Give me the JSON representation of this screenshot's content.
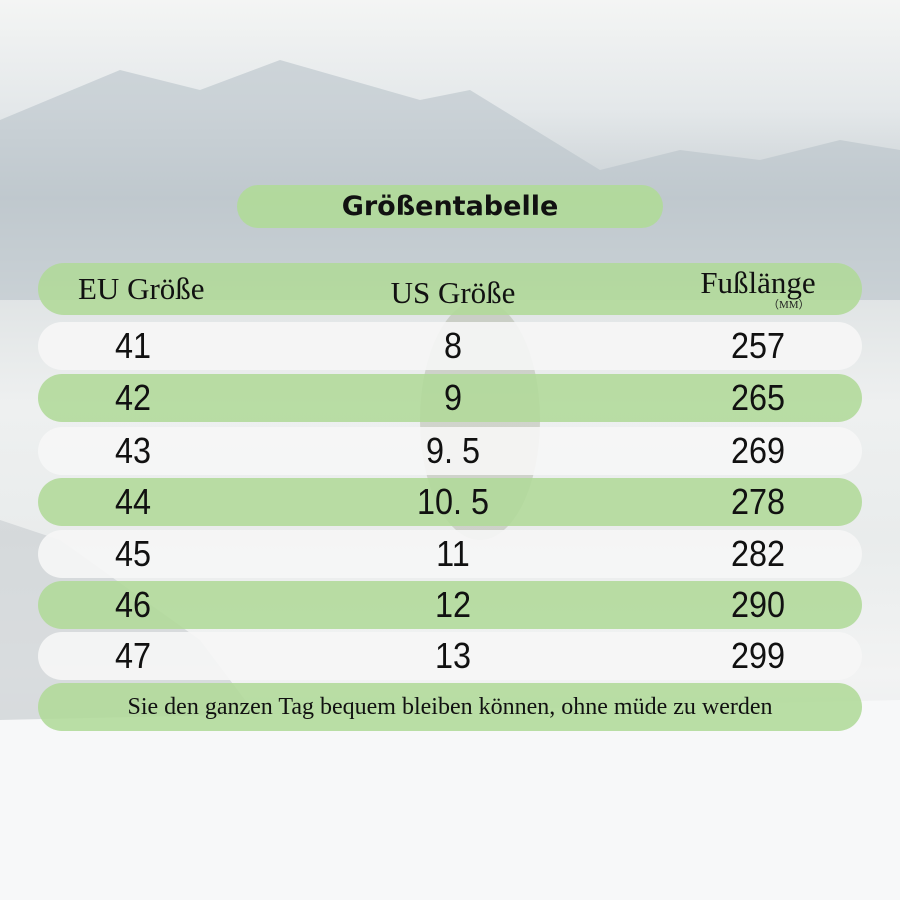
{
  "title": "Größentabelle",
  "headers": {
    "eu": "EU Größe",
    "us": "US Größe",
    "foot": "Fußlänge",
    "foot_unit": "（MM）"
  },
  "rows": [
    {
      "eu": "41",
      "us": "8",
      "foot": "257"
    },
    {
      "eu": "42",
      "us": "9",
      "foot": "265"
    },
    {
      "eu": "43",
      "us": "9. 5",
      "foot": "269"
    },
    {
      "eu": "44",
      "us": "10. 5",
      "foot": "278"
    },
    {
      "eu": "45",
      "us": "11",
      "foot": "282"
    },
    {
      "eu": "46",
      "us": "12",
      "foot": "290"
    },
    {
      "eu": "47",
      "us": "13",
      "foot": "299"
    }
  ],
  "footer": "Sie den ganzen Tag bequem bleiben können, ohne müde zu werden",
  "colors": {
    "green": "#b0da98",
    "white": "#f6f6f6"
  }
}
